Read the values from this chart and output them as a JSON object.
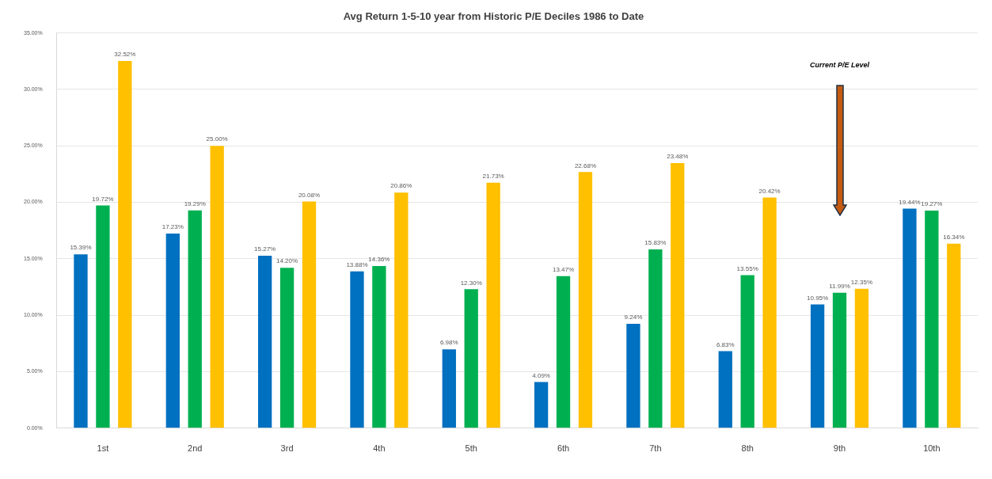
{
  "chart_data": {
    "type": "bar",
    "title": "Avg Return 1-5-10 year from Historic P/E Deciles 1986 to Date",
    "categories": [
      "1st",
      "2nd",
      "3rd",
      "4th",
      "5th",
      "6th",
      "7th",
      "8th",
      "9th",
      "10th"
    ],
    "series": [
      {
        "color": "#0070c0",
        "values": [
          15.39,
          17.23,
          15.27,
          13.88,
          6.98,
          4.09,
          9.24,
          6.83,
          10.95,
          19.44
        ],
        "value_labels": [
          "15.39%",
          "17.23%",
          "15.27%",
          "13.88%",
          "6.98%",
          "4.09%",
          "9.24%",
          "6.83%",
          "10.95%",
          "19.44%"
        ]
      },
      {
        "color": "#00b050",
        "values": [
          19.72,
          19.29,
          14.2,
          14.36,
          12.3,
          13.47,
          15.83,
          13.55,
          11.99,
          19.27
        ],
        "value_labels": [
          "19.72%",
          "19.29%",
          "14.20%",
          "14.36%",
          "12.30%",
          "13.47%",
          "15.83%",
          "13.55%",
          "11.99%",
          "19.27%"
        ]
      },
      {
        "color": "#ffc000",
        "values": [
          32.52,
          25.0,
          20.08,
          20.86,
          21.73,
          22.68,
          23.48,
          20.42,
          12.35,
          16.34
        ],
        "value_labels": [
          "32.52%",
          "25.00%",
          "20.08%",
          "20.86%",
          "21.73%",
          "22.68%",
          "23.48%",
          "20.42%",
          "12.35%",
          "16.34%"
        ]
      }
    ],
    "ylim": [
      0,
      35
    ],
    "yticks": [
      {
        "value": 0,
        "label": "0.00%"
      },
      {
        "value": 5,
        "label": "5.00%"
      },
      {
        "value": 10,
        "label": "10.00%"
      },
      {
        "value": 15,
        "label": "15.00%"
      },
      {
        "value": 20,
        "label": "20.00%"
      },
      {
        "value": 25,
        "label": "25.00%"
      },
      {
        "value": 30,
        "label": "30.00%"
      },
      {
        "value": 35,
        "label": "35.00%"
      }
    ],
    "grid": "y",
    "annotations": [
      "Current P/E Level"
    ]
  }
}
